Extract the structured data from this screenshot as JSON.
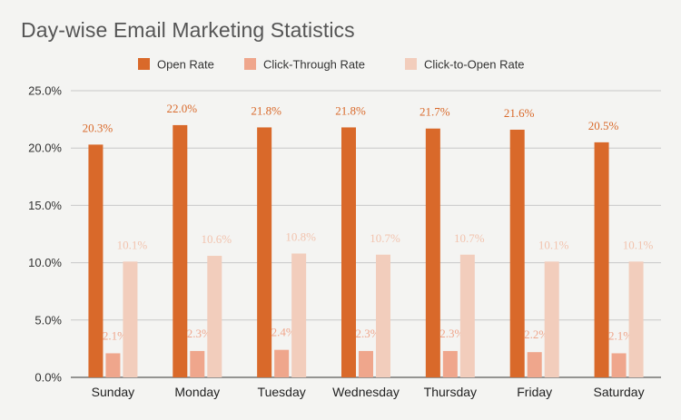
{
  "chart_data": {
    "type": "bar",
    "title": "Day-wise Email Marketing Statistics",
    "xlabel": "",
    "ylabel": "",
    "ylim": [
      0,
      25
    ],
    "yticks": [
      "0.0%",
      "5.0%",
      "10.0%",
      "15.0%",
      "20.0%",
      "25.0%"
    ],
    "ytick_values": [
      0,
      5,
      10,
      15,
      20,
      25
    ],
    "categories": [
      "Sunday",
      "Monday",
      "Tuesday",
      "Wednesday",
      "Thursday",
      "Friday",
      "Saturday"
    ],
    "legend_position": "top",
    "grid": true,
    "series": [
      {
        "name": "Open Rate",
        "color": "#d9692a",
        "label_color": "#d9692a",
        "values": [
          20.3,
          22.0,
          21.8,
          21.8,
          21.7,
          21.6,
          20.5
        ],
        "labels": [
          "20.3%",
          "22.0%",
          "21.8%",
          "21.8%",
          "21.7%",
          "21.6%",
          "20.5%"
        ]
      },
      {
        "name": "Click-Through Rate",
        "color": "#efa68c",
        "label_color": "#efa68c",
        "values": [
          2.1,
          2.3,
          2.4,
          2.3,
          2.3,
          2.2,
          2.1
        ],
        "labels": [
          "2.1%",
          "2.3%",
          "2.4%",
          "2.3%",
          "2.3%",
          "2.2%",
          "2.1%"
        ]
      },
      {
        "name": "Click-to-Open Rate",
        "color": "#f2cdbc",
        "label_color": "#f2c3ae",
        "values": [
          10.1,
          10.6,
          10.8,
          10.7,
          10.7,
          10.1,
          10.1
        ],
        "labels": [
          "10.1%",
          "10.6%",
          "10.8%",
          "10.7%",
          "10.7%",
          "10.1%",
          "10.1%"
        ]
      }
    ]
  }
}
